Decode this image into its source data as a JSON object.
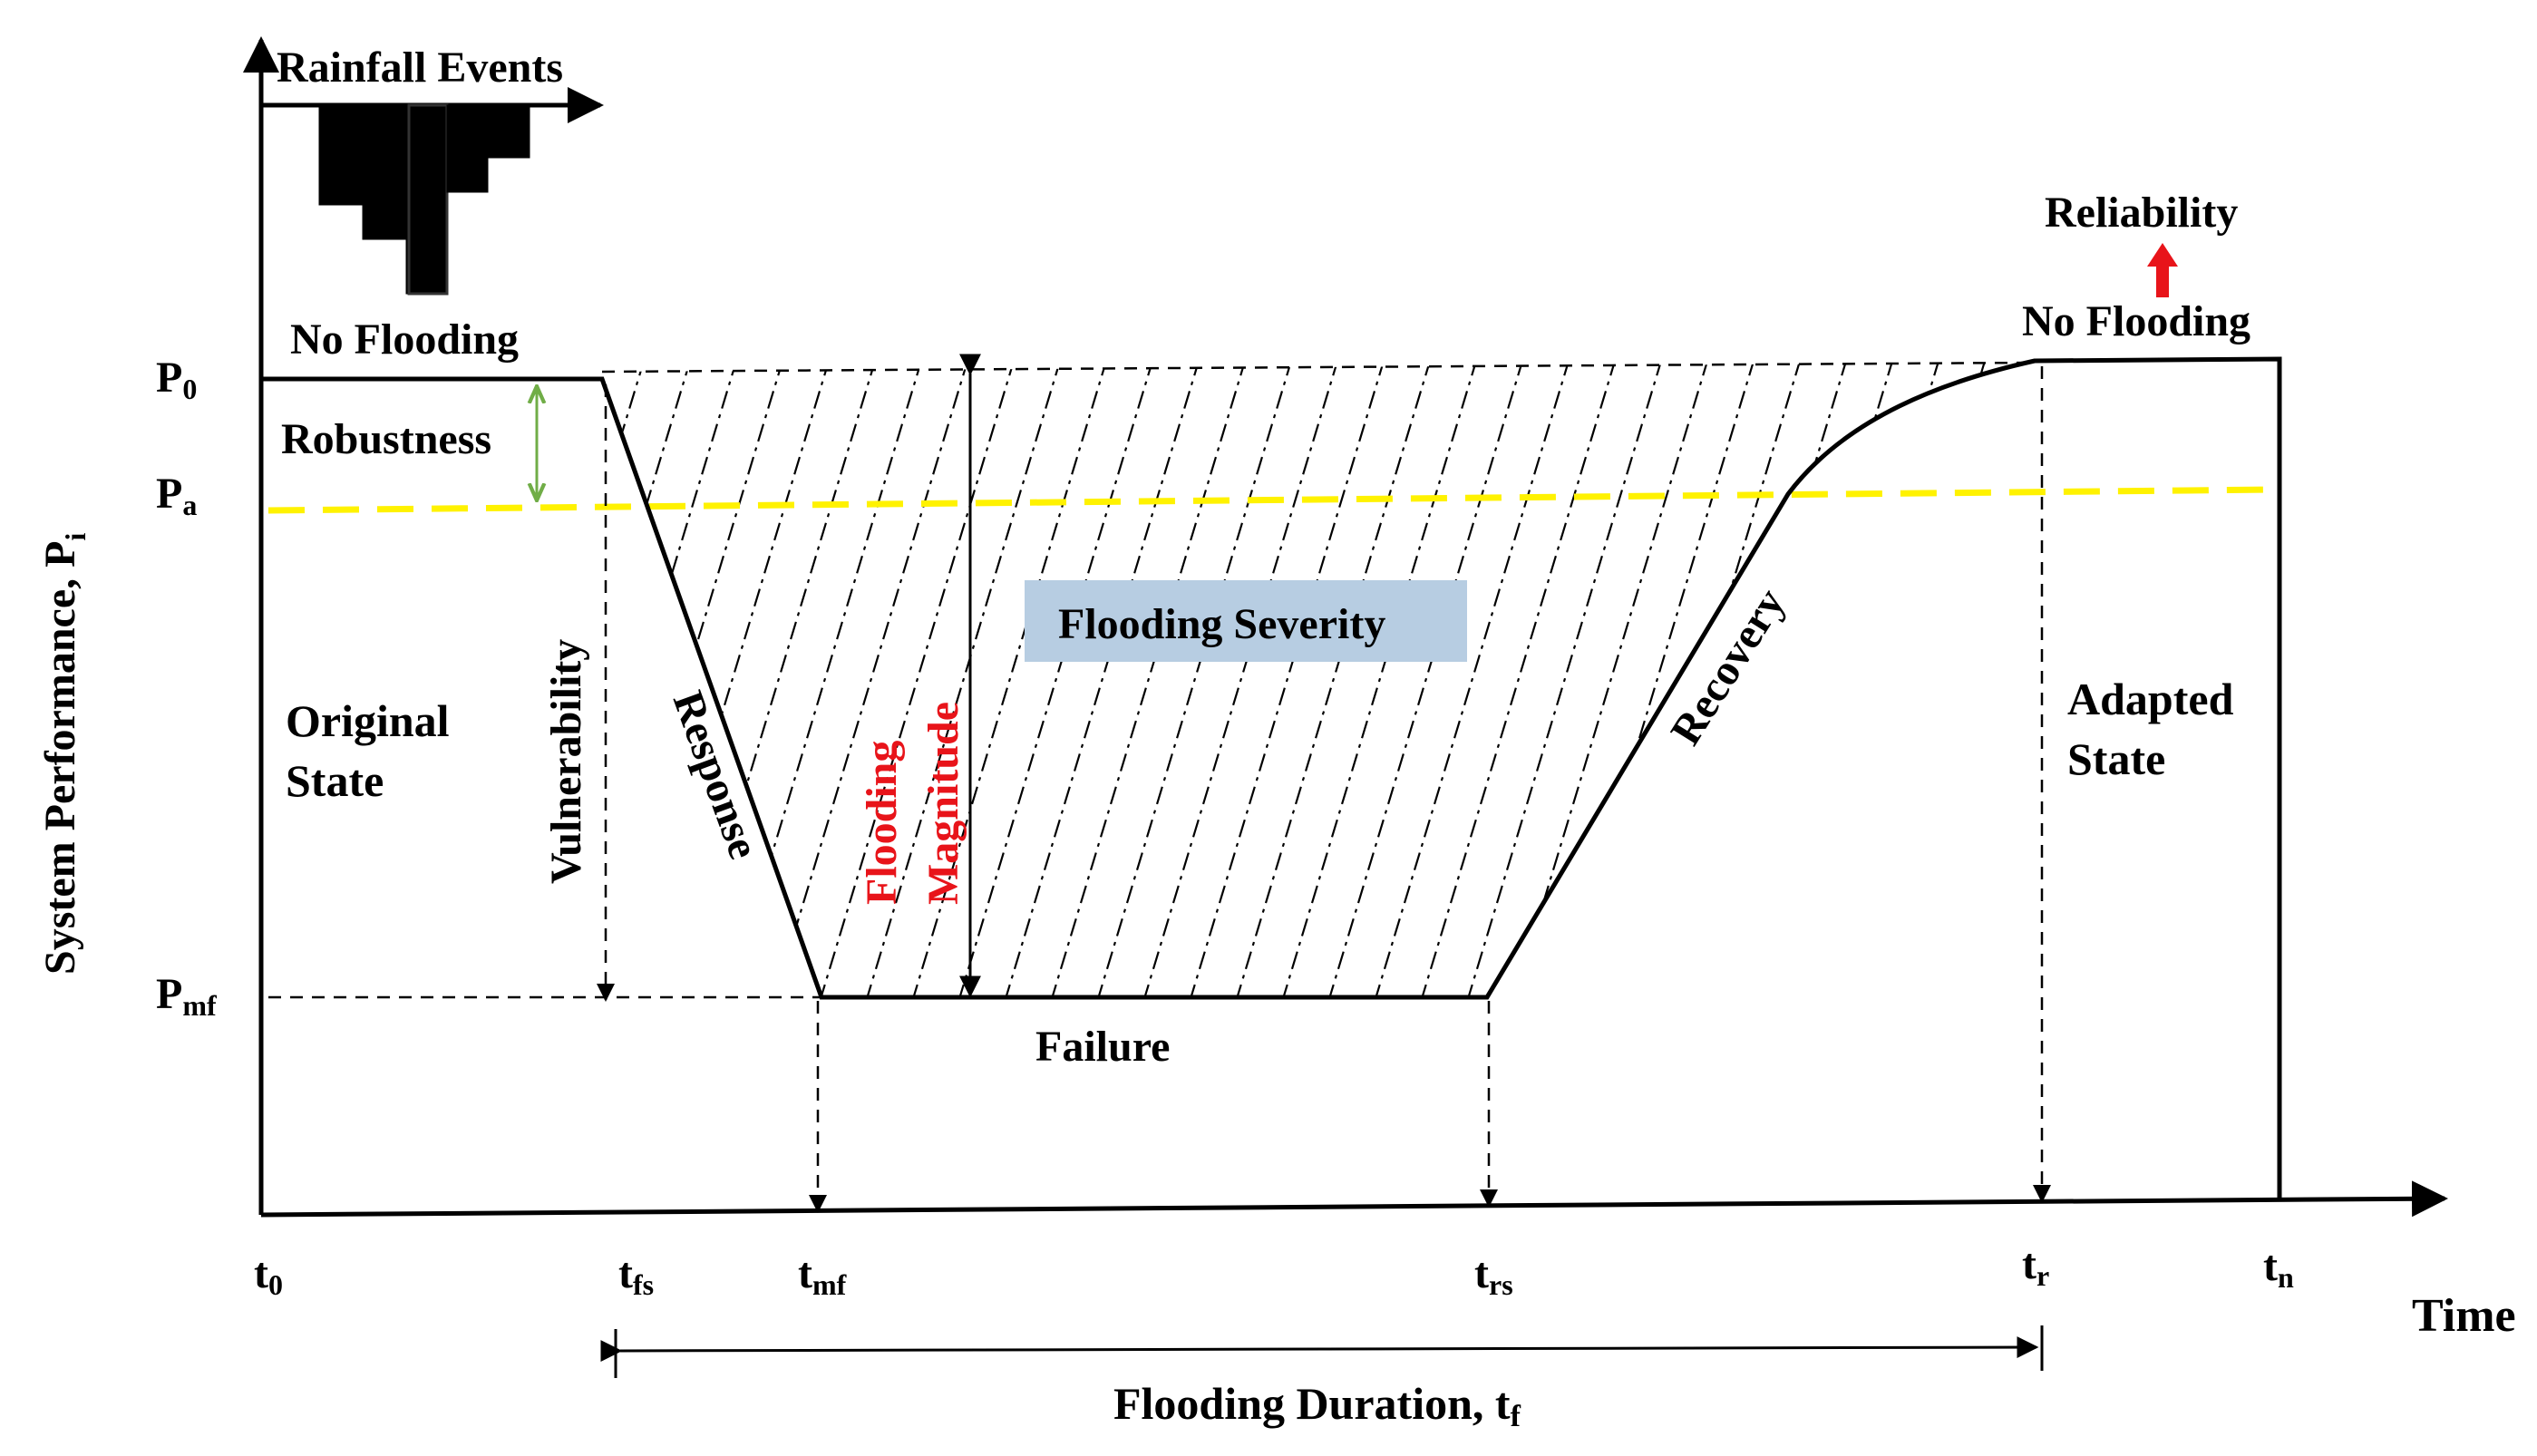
{
  "colors": {
    "threshold_line": "#fff200",
    "severity_box": "#b7cde2",
    "magnitude_text": "#e8141a",
    "reliability_arrow": "#e8141a",
    "robustness_arrow": "#70ad47"
  },
  "labels": {
    "rainfall_events": "Rainfall Events",
    "no_flooding_left": "No Flooding",
    "no_flooding_right": "No Flooding",
    "reliability": "Reliability",
    "robustness": "Robustness",
    "vulnerability": "Vulnerability",
    "response": "Response",
    "flooding_magnitude_line1": "Flooding",
    "flooding_magnitude_line2": "Magnitude",
    "flooding_severity": "Flooding Severity",
    "recovery": "Recovery",
    "original_state_line1": "Original",
    "original_state_line2": "State",
    "adapted_state_line1": "Adapted",
    "adapted_state_line2": "State",
    "failure": "Failure",
    "flooding_duration": "Flooding Duration, t",
    "flooding_duration_sub": "f"
  },
  "axes": {
    "y_label": "System Performance, P",
    "y_label_sub": "i",
    "x_label": "Time",
    "y_ticks": [
      {
        "main": "P",
        "sub": "0"
      },
      {
        "main": "P",
        "sub": "a"
      },
      {
        "main": "P",
        "sub": "mf"
      }
    ],
    "x_ticks": [
      {
        "main": "t",
        "sub": "0"
      },
      {
        "main": "t",
        "sub": "fs"
      },
      {
        "main": "t",
        "sub": "mf"
      },
      {
        "main": "t",
        "sub": "rs"
      },
      {
        "main": "t",
        "sub": "r"
      },
      {
        "main": "t",
        "sub": "n"
      }
    ]
  }
}
